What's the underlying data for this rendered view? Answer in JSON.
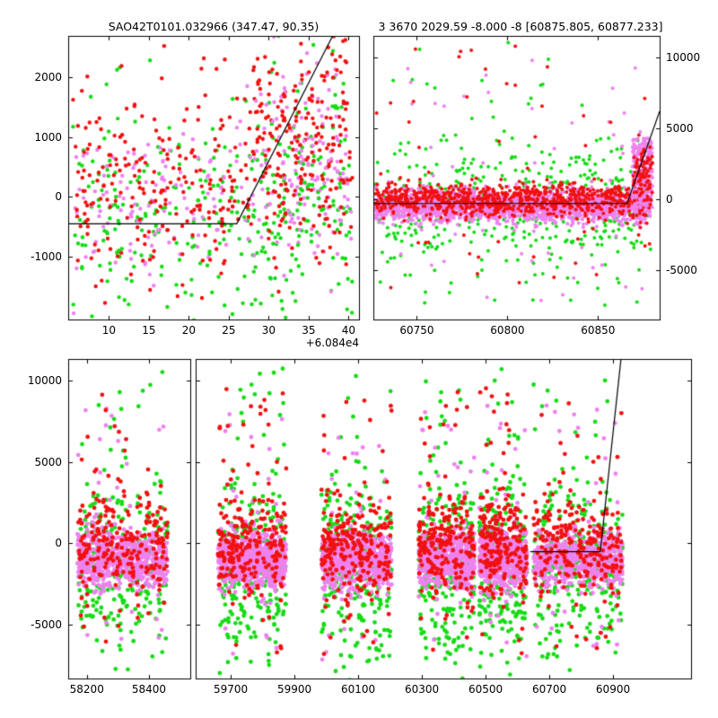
{
  "figure": {
    "bg": "#ffffff"
  },
  "colors": {
    "red": "#f11111",
    "green": "#15dc15",
    "violet": "#ee82ee",
    "line": "#000000",
    "axis": "#000000"
  },
  "chart_data": [
    {
      "id": "top-left",
      "type": "scatter",
      "title": "SAO42T0101.032966 (347.47, 90.35)",
      "x_offset": "+6.084e4",
      "marker_r": 2.2,
      "ylim": [
        -2050,
        2690
      ],
      "y_side": "left",
      "y_ticks": [
        {
          "v": -1000,
          "label": "-1000"
        },
        {
          "v": 0,
          "label": "0"
        },
        {
          "v": 1000,
          "label": "1000"
        },
        {
          "v": 2000,
          "label": "2000"
        }
      ],
      "panels": [
        {
          "px": [
            76,
            40,
            400,
            356
          ],
          "xlim": [
            60844.9,
            60881.3
          ],
          "x_ticks": [
            {
              "v": 60850,
              "label": "10"
            },
            {
              "v": 60855,
              "label": "15"
            },
            {
              "v": 60860,
              "label": "20"
            },
            {
              "v": 60865,
              "label": "25"
            },
            {
              "v": 60870,
              "label": "30"
            },
            {
              "v": 60875,
              "label": "35"
            },
            {
              "v": 60880,
              "label": "40"
            }
          ]
        }
      ],
      "line": [
        [
          60844.9,
          -450
        ],
        [
          60866,
          -450
        ],
        [
          60878,
          2690
        ]
      ],
      "clusters": [
        {
          "x0": 60845.5,
          "x1": 60880.5,
          "series": [
            {
              "c": "green",
              "n": 260,
              "yc": -350,
              "ys": 850
            },
            {
              "c": "green",
              "n": 25,
              "dist": "uniform",
              "y0": -2000,
              "y1": 2600
            },
            {
              "c": "violet",
              "n": 200,
              "yc": 0,
              "ys": 650
            },
            {
              "c": "red",
              "n": 300,
              "yc": 250,
              "ys": 800
            },
            {
              "c": "red",
              "n": 20,
              "dist": "uniform",
              "y0": -1700,
              "y1": 2600
            }
          ]
        },
        {
          "x0": 60868,
          "x1": 60880,
          "series": [
            {
              "c": "green",
              "n": 60,
              "yc": 200,
              "ys": 1200
            },
            {
              "c": "violet",
              "n": 70,
              "yc": 900,
              "ys": 800
            },
            {
              "c": "red",
              "n": 130,
              "yc": 1300,
              "ys": 800
            }
          ]
        }
      ]
    },
    {
      "id": "top-right",
      "type": "scatter",
      "title": "3 3670 2029.59 -8.000 -8 [60875.805, 60877.233]",
      "marker_r": 2.0,
      "ylim": [
        -8480,
        11520
      ],
      "y_side": "right",
      "y_ticks": [
        {
          "v": -5000,
          "label": "-5000"
        },
        {
          "v": 0,
          "label": "0"
        },
        {
          "v": 5000,
          "label": "5000"
        },
        {
          "v": 10000,
          "label": "10000"
        }
      ],
      "panels": [
        {
          "px": [
            416,
            40,
            735,
            356
          ],
          "xlim": [
            60726,
            60884
          ],
          "x_ticks": [
            {
              "v": 60750,
              "label": "60750"
            },
            {
              "v": 60800,
              "label": "60800"
            },
            {
              "v": 60850,
              "label": "60850"
            }
          ]
        }
      ],
      "line": [
        [
          60726,
          -300
        ],
        [
          60866,
          -300
        ],
        [
          60884,
          6200
        ]
      ],
      "clusters": [
        {
          "x0": 60727,
          "x1": 60879,
          "series": [
            {
              "c": "green",
              "n": 380,
              "yc": -500,
              "ys": 2300
            },
            {
              "c": "green",
              "n": 70,
              "dist": "uniform",
              "y0": -8300,
              "y1": 11300
            },
            {
              "c": "violet",
              "n": 2200,
              "yc": -450,
              "ys": 550
            },
            {
              "c": "violet",
              "n": 50,
              "dist": "uniform",
              "y0": -7200,
              "y1": 9800
            },
            {
              "c": "red",
              "n": 800,
              "yc": 0,
              "ys": 600
            },
            {
              "c": "red",
              "n": 60,
              "dist": "uniform",
              "y0": -6500,
              "y1": 10800
            }
          ]
        },
        {
          "x0": 60869,
          "x1": 60880,
          "series": [
            {
              "c": "violet",
              "n": 250,
              "dist": "uniform",
              "y0": -600,
              "y1": 4300
            },
            {
              "c": "red",
              "n": 80,
              "yc": 1500,
              "ys": 1200
            }
          ]
        }
      ]
    },
    {
      "id": "bottom",
      "type": "scatter",
      "title": "",
      "marker_r": 2.4,
      "ylim": [
        -8300,
        11330
      ],
      "y_side": "left",
      "y_ticks": [
        {
          "v": -5000,
          "label": "-5000"
        },
        {
          "v": 0,
          "label": "0"
        },
        {
          "v": 5000,
          "label": "5000"
        },
        {
          "v": 10000,
          "label": "10000"
        }
      ],
      "panels": [
        {
          "px": [
            76,
            400,
            212,
            756
          ],
          "xlim": [
            58140,
            58533
          ],
          "x_ticks": [
            {
              "v": 58200,
              "label": "58200"
            },
            {
              "v": 58400,
              "label": "58400"
            }
          ]
        },
        {
          "px": [
            218,
            400,
            770,
            756
          ],
          "xlim": [
            59590,
            61145
          ],
          "x_ticks": [
            {
              "v": 59700,
              "label": "59700"
            },
            {
              "v": 59900,
              "label": "59900"
            },
            {
              "v": 60100,
              "label": "60100"
            },
            {
              "v": 60300,
              "label": "60300"
            },
            {
              "v": 60500,
              "label": "60500"
            },
            {
              "v": 60700,
              "label": "60700"
            },
            {
              "v": 60900,
              "label": "60900"
            }
          ]
        }
      ],
      "line": [
        [
          60640,
          -500
        ],
        [
          60860,
          -500
        ],
        [
          60925,
          11330
        ]
      ],
      "clusters": [
        {
          "x0": 58170,
          "x1": 58460,
          "series": [
            {
              "c": "green",
              "n": 230,
              "yc": -1500,
              "ys": 2600
            },
            {
              "c": "green",
              "n": 35,
              "dist": "uniform",
              "y0": -8300,
              "y1": 10900
            },
            {
              "c": "violet",
              "n": 680,
              "yc": -1000,
              "ys": 850
            },
            {
              "c": "violet",
              "n": 30,
              "dist": "uniform",
              "y0": -7200,
              "y1": 8600
            },
            {
              "c": "red",
              "n": 210,
              "yc": -100,
              "ys": 1500
            },
            {
              "c": "red",
              "n": 35,
              "dist": "uniform",
              "y0": -6800,
              "y1": 9600
            }
          ]
        },
        {
          "x0": 59660,
          "x1": 59875,
          "series": [
            {
              "c": "green",
              "n": 230,
              "yc": -1500,
              "ys": 2600
            },
            {
              "c": "green",
              "n": 35,
              "dist": "uniform",
              "y0": -8300,
              "y1": 10900
            },
            {
              "c": "violet",
              "n": 680,
              "yc": -1000,
              "ys": 850
            },
            {
              "c": "violet",
              "n": 30,
              "dist": "uniform",
              "y0": -7200,
              "y1": 8600
            },
            {
              "c": "red",
              "n": 210,
              "yc": -100,
              "ys": 1500
            },
            {
              "c": "red",
              "n": 35,
              "dist": "uniform",
              "y0": -6800,
              "y1": 9600
            }
          ]
        },
        {
          "x0": 59985,
          "x1": 60205,
          "series": [
            {
              "c": "green",
              "n": 240,
              "yc": -1500,
              "ys": 2600
            },
            {
              "c": "green",
              "n": 35,
              "dist": "uniform",
              "y0": -8300,
              "y1": 10900
            },
            {
              "c": "violet",
              "n": 680,
              "yc": -1000,
              "ys": 850
            },
            {
              "c": "violet",
              "n": 30,
              "dist": "uniform",
              "y0": -7200,
              "y1": 8600
            },
            {
              "c": "red",
              "n": 220,
              "yc": -100,
              "ys": 1500
            },
            {
              "c": "red",
              "n": 35,
              "dist": "uniform",
              "y0": -6800,
              "y1": 9600
            }
          ]
        },
        {
          "x0": 60290,
          "x1": 60465,
          "series": [
            {
              "c": "green",
              "n": 200,
              "yc": -1500,
              "ys": 2600
            },
            {
              "c": "green",
              "n": 30,
              "dist": "uniform",
              "y0": -8300,
              "y1": 10900
            },
            {
              "c": "violet",
              "n": 620,
              "yc": -1000,
              "ys": 850
            },
            {
              "c": "violet",
              "n": 25,
              "dist": "uniform",
              "y0": -7200,
              "y1": 8600
            },
            {
              "c": "red",
              "n": 190,
              "yc": -100,
              "ys": 1500
            },
            {
              "c": "red",
              "n": 30,
              "dist": "uniform",
              "y0": -6800,
              "y1": 9600
            }
          ]
        },
        {
          "x0": 60480,
          "x1": 60630,
          "series": [
            {
              "c": "green",
              "n": 200,
              "yc": -1500,
              "ys": 2600
            },
            {
              "c": "green",
              "n": 30,
              "dist": "uniform",
              "y0": -8300,
              "y1": 10900
            },
            {
              "c": "violet",
              "n": 620,
              "yc": -1000,
              "ys": 850
            },
            {
              "c": "violet",
              "n": 25,
              "dist": "uniform",
              "y0": -7200,
              "y1": 8600
            },
            {
              "c": "red",
              "n": 190,
              "yc": -100,
              "ys": 1500
            },
            {
              "c": "red",
              "n": 30,
              "dist": "uniform",
              "y0": -6800,
              "y1": 9600
            }
          ]
        },
        {
          "x0": 60650,
          "x1": 60930,
          "series": [
            {
              "c": "green",
              "n": 230,
              "yc": -1500,
              "ys": 2600
            },
            {
              "c": "green",
              "n": 35,
              "dist": "uniform",
              "y0": -8300,
              "y1": 10900
            },
            {
              "c": "violet",
              "n": 600,
              "yc": -1000,
              "ys": 850
            },
            {
              "c": "violet",
              "n": 30,
              "dist": "uniform",
              "y0": -7200,
              "y1": 8600
            },
            {
              "c": "red",
              "n": 210,
              "yc": -100,
              "ys": 1500
            },
            {
              "c": "red",
              "n": 35,
              "dist": "uniform",
              "y0": -6800,
              "y1": 9600
            }
          ]
        }
      ]
    }
  ]
}
